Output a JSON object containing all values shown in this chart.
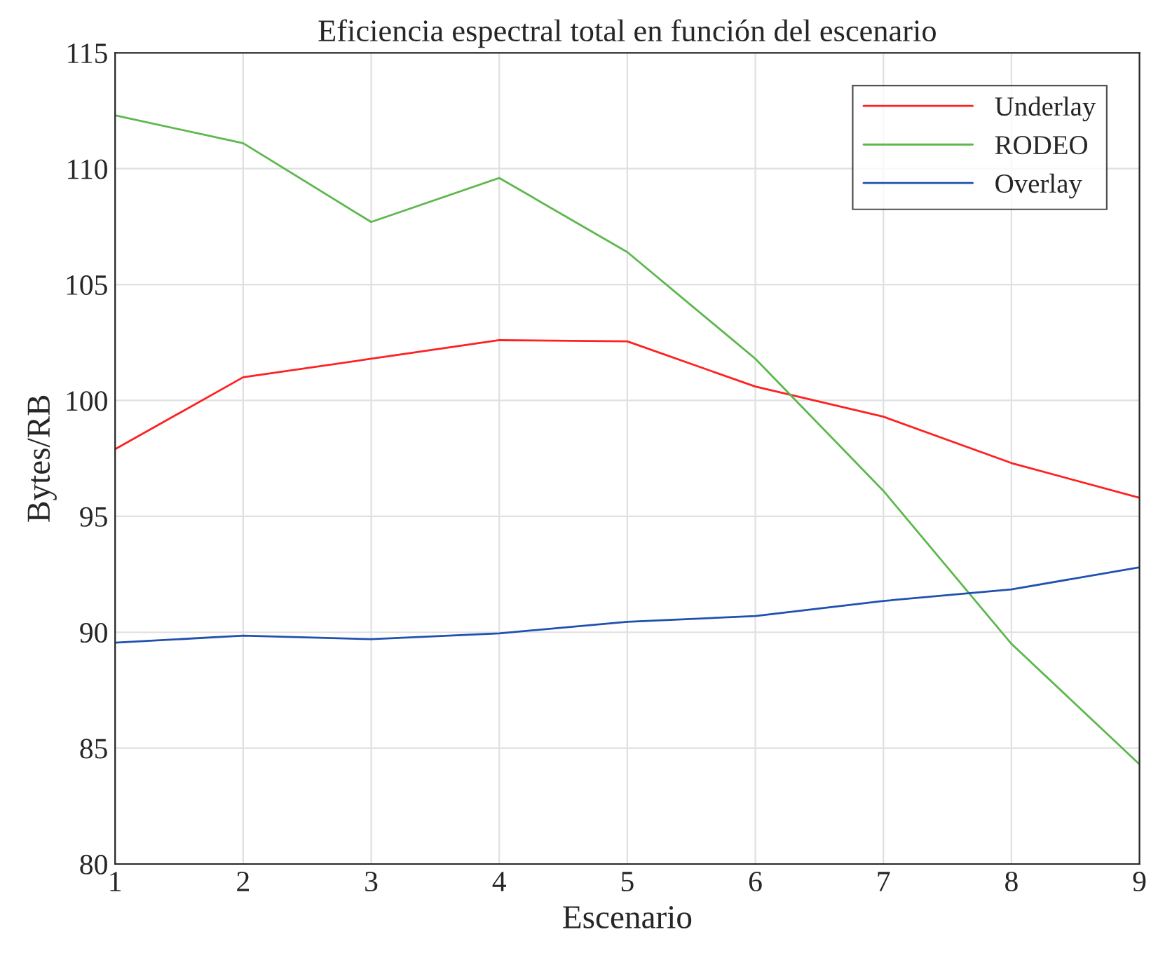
{
  "chart_data": {
    "type": "line",
    "title": "Eficiencia espectral total en función del escenario",
    "xlabel": "Escenario",
    "ylabel": "Bytes/RB",
    "x": [
      1,
      2,
      3,
      4,
      5,
      6,
      7,
      8,
      9
    ],
    "series": [
      {
        "name": "Underlay",
        "color": "#ff2020",
        "values": [
          97.9,
          101.0,
          101.8,
          102.6,
          102.55,
          100.6,
          99.3,
          97.3,
          95.8
        ]
      },
      {
        "name": "RODEO",
        "color": "#5cb84c",
        "values": [
          112.3,
          111.1,
          107.7,
          109.6,
          106.4,
          101.8,
          96.1,
          89.5,
          84.3
        ]
      },
      {
        "name": "Overlay",
        "color": "#2050b0",
        "values": [
          89.55,
          89.85,
          89.7,
          89.95,
          90.45,
          90.7,
          91.35,
          91.85,
          92.8
        ]
      }
    ],
    "xlim": [
      1,
      9
    ],
    "xticks": [
      1,
      2,
      3,
      4,
      5,
      6,
      7,
      8,
      9
    ],
    "ylim": [
      80,
      115
    ],
    "yticks": [
      80,
      85,
      90,
      95,
      100,
      105,
      110,
      115
    ],
    "grid": true,
    "legend": "top right",
    "marker": "none",
    "line_style": "solid"
  }
}
